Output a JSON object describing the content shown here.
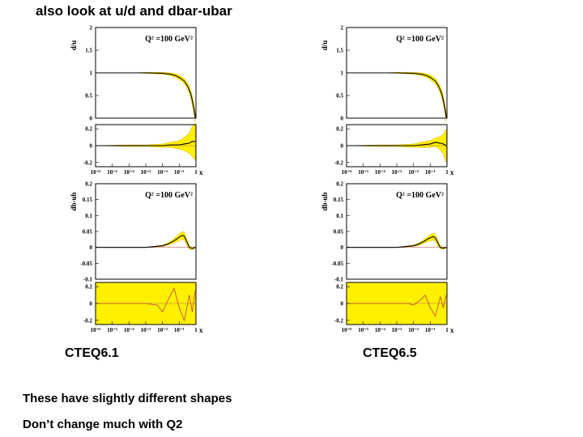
{
  "slide": {
    "title": "also look at u/d and dbar-ubar",
    "notes": [
      "These have slightly different shapes",
      "Don’t change much with Q2"
    ]
  },
  "chart_data": [
    {
      "type": "line",
      "figure_label": "CTEQ6.1",
      "panels": [
        {
          "id": "du",
          "ylabel": "d/u",
          "annotation": "Q² =100 GeV²",
          "ylim": [
            0,
            2
          ],
          "yticks": [
            "0",
            "0.5",
            "1",
            "1.5",
            "2"
          ],
          "xscale": "log",
          "series": [
            {
              "x": [
                1e-06,
                0.0001,
                0.001,
                0.01,
                0.03,
                0.06,
                0.1,
                0.2,
                0.3,
                0.4,
                0.5,
                0.6,
                0.7,
                0.8,
                0.9
              ],
              "y": [
                1.0,
                1.0,
                1.0,
                0.99,
                0.97,
                0.94,
                0.9,
                0.82,
                0.72,
                0.62,
                0.52,
                0.4,
                0.28,
                0.15,
                0.02
              ],
              "band_halfwidth": [
                0.0,
                0.0,
                0.01,
                0.02,
                0.03,
                0.04,
                0.05,
                0.06,
                0.07,
                0.08,
                0.09,
                0.1,
                0.1,
                0.1,
                0.1
              ]
            }
          ]
        },
        {
          "id": "du_ratio",
          "ylim": [
            -0.25,
            0.25
          ],
          "yticks": [
            "-0.2",
            "0",
            "0.2"
          ],
          "xscale": "log",
          "xticks": [
            "10⁻⁶",
            "10⁻⁵",
            "10⁻⁴",
            "10⁻³",
            "10⁻²",
            "10⁻¹",
            "1"
          ],
          "xlabel": "x",
          "series": [
            {
              "x": [
                1e-06,
                0.0001,
                0.001,
                0.01,
                0.03,
                0.1,
                0.2,
                0.4,
                0.6,
                0.9
              ],
              "y": [
                0.0,
                0.0,
                0.0,
                0.0,
                0.01,
                0.01,
                0.02,
                0.03,
                0.05,
                0.05
              ],
              "band_halfwidth": [
                0.0,
                0.01,
                0.01,
                0.02,
                0.03,
                0.05,
                0.08,
                0.12,
                0.18,
                0.22
              ]
            }
          ]
        },
        {
          "id": "dbub",
          "ylabel": "db-ub",
          "annotation": "Q² =100 GeV²",
          "ylim": [
            -0.1,
            0.2
          ],
          "yticks": [
            "-0.1",
            "-0.05",
            "0",
            "0.05",
            "0.1",
            "0.15",
            "0.2"
          ],
          "xscale": "log",
          "series": [
            {
              "x": [
                1e-06,
                0.0001,
                0.001,
                0.01,
                0.02,
                0.04,
                0.07,
                0.1,
                0.15,
                0.2,
                0.3,
                0.4,
                0.6,
                0.9
              ],
              "y": [
                0.0,
                0.0,
                0.0,
                0.005,
                0.01,
                0.018,
                0.026,
                0.032,
                0.038,
                0.035,
                0.015,
                0.0,
                -0.004,
                0.0
              ],
              "band_halfwidth": [
                0.0,
                0.0,
                0.0,
                0.002,
                0.004,
                0.006,
                0.009,
                0.011,
                0.012,
                0.013,
                0.01,
                0.006,
                0.004,
                0.002
              ]
            }
          ]
        },
        {
          "id": "dbub_ratio",
          "ylim": [
            -0.25,
            0.25
          ],
          "yticks": [
            "-0.2",
            "0",
            "0.2"
          ],
          "xscale": "log",
          "xticks": [
            "10⁻⁶",
            "10⁻⁵",
            "10⁻⁴",
            "10⁻³",
            "10⁻²",
            "10⁻¹",
            "1"
          ],
          "xlabel": "x",
          "full_band": true,
          "series": [
            {
              "x": [
                1e-06,
                0.0001,
                0.001,
                0.005,
                0.01,
                0.03,
                0.05,
                0.1,
                0.2,
                0.4,
                0.6,
                0.9
              ],
              "y": [
                0.0,
                0.0,
                0.0,
                -0.02,
                -0.1,
                0.1,
                0.18,
                -0.05,
                -0.2,
                0.1,
                -0.1,
                0.15
              ],
              "band_halfwidth": [
                0.25,
                0.25,
                0.25,
                0.25,
                0.25,
                0.25,
                0.25,
                0.25,
                0.25,
                0.25,
                0.25,
                0.25
              ]
            }
          ]
        }
      ]
    },
    {
      "type": "line",
      "figure_label": "CTEQ6.5",
      "panels": [
        {
          "id": "du",
          "ylabel": "d/u",
          "annotation": "Q² =100 GeV²",
          "ylim": [
            0,
            2
          ],
          "yticks": [
            "0",
            "0.5",
            "1",
            "1.5",
            "2"
          ],
          "xscale": "log",
          "series": [
            {
              "x": [
                1e-06,
                0.0001,
                0.001,
                0.01,
                0.03,
                0.06,
                0.1,
                0.2,
                0.3,
                0.4,
                0.5,
                0.6,
                0.7,
                0.8,
                0.9
              ],
              "y": [
                1.0,
                1.0,
                1.0,
                0.99,
                0.97,
                0.94,
                0.9,
                0.82,
                0.72,
                0.62,
                0.52,
                0.4,
                0.28,
                0.15,
                0.02
              ],
              "band_halfwidth": [
                0.0,
                0.0,
                0.01,
                0.02,
                0.03,
                0.04,
                0.05,
                0.06,
                0.07,
                0.08,
                0.09,
                0.1,
                0.1,
                0.1,
                0.1
              ]
            }
          ]
        },
        {
          "id": "du_ratio",
          "ylim": [
            -0.25,
            0.25
          ],
          "yticks": [
            "-0.2",
            "0",
            "0.2"
          ],
          "xscale": "log",
          "xticks": [
            "10⁻⁶",
            "10⁻⁵",
            "10⁻⁴",
            "10⁻³",
            "10⁻²",
            "10⁻¹",
            "1"
          ],
          "xlabel": "x",
          "series": [
            {
              "x": [
                1e-06,
                0.0001,
                0.001,
                0.01,
                0.03,
                0.1,
                0.2,
                0.4,
                0.6,
                0.9
              ],
              "y": [
                0.0,
                0.0,
                0.0,
                0.0,
                0.01,
                0.02,
                0.04,
                0.03,
                0.02,
                0.0
              ],
              "band_halfwidth": [
                0.0,
                0.01,
                0.01,
                0.02,
                0.03,
                0.04,
                0.05,
                0.08,
                0.12,
                0.2
              ]
            }
          ]
        },
        {
          "id": "dbub",
          "ylabel": "db-ub",
          "annotation": "Q² =100 GeV²",
          "ylim": [
            -0.1,
            0.2
          ],
          "yticks": [
            "-0.1",
            "-0.05",
            "0",
            "0.05",
            "0.1",
            "0.15",
            "0.2"
          ],
          "xscale": "log",
          "series": [
            {
              "x": [
                1e-06,
                0.0001,
                0.001,
                0.01,
                0.02,
                0.04,
                0.07,
                0.1,
                0.15,
                0.2,
                0.3,
                0.4,
                0.6,
                0.9
              ],
              "y": [
                0.0,
                0.0,
                0.0,
                0.005,
                0.01,
                0.018,
                0.026,
                0.03,
                0.034,
                0.03,
                0.012,
                0.0,
                -0.003,
                0.0
              ],
              "band_halfwidth": [
                0.0,
                0.0,
                0.0,
                0.002,
                0.004,
                0.006,
                0.008,
                0.01,
                0.011,
                0.011,
                0.009,
                0.005,
                0.003,
                0.002
              ]
            }
          ]
        },
        {
          "id": "dbub_ratio",
          "ylim": [
            -0.25,
            0.25
          ],
          "yticks": [
            "-0.2",
            "0",
            "0.2"
          ],
          "xscale": "log",
          "xticks": [
            "10⁻⁶",
            "10⁻⁵",
            "10⁻⁴",
            "10⁻³",
            "10⁻²",
            "10⁻¹",
            "1"
          ],
          "xlabel": "x",
          "full_band": true,
          "series": [
            {
              "x": [
                1e-06,
                0.0001,
                0.001,
                0.005,
                0.01,
                0.03,
                0.05,
                0.1,
                0.2,
                0.4,
                0.6,
                0.9
              ],
              "y": [
                0.0,
                0.0,
                0.0,
                0.0,
                -0.02,
                0.05,
                0.1,
                -0.05,
                -0.15,
                0.08,
                -0.05,
                0.1
              ],
              "band_halfwidth": [
                0.25,
                0.25,
                0.25,
                0.25,
                0.25,
                0.25,
                0.25,
                0.25,
                0.25,
                0.25,
                0.25,
                0.25
              ]
            }
          ]
        }
      ]
    }
  ]
}
